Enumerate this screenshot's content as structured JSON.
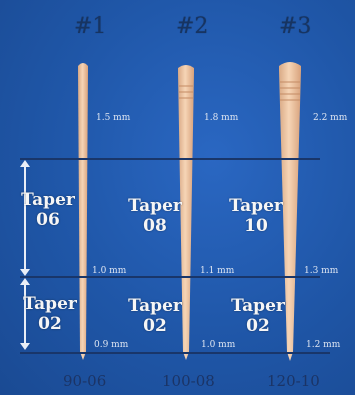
{
  "instruments": [
    {
      "number": "#1",
      "dim_top": "1.5 mm",
      "dim_mid": "1.0 mm",
      "dim_bottom": "0.9 mm",
      "code": "90-06",
      "upper_taper": {
        "word": "Taper",
        "value": "06"
      },
      "lower_taper": {
        "word": "Taper",
        "value": "02"
      }
    },
    {
      "number": "#2",
      "dim_top": "1.8 mm",
      "dim_mid": "1.1 mm",
      "dim_bottom": "1.0 mm",
      "code": "100-08",
      "upper_taper": {
        "word": "Taper",
        "value": "08"
      },
      "lower_taper": {
        "word": "Taper",
        "value": "02"
      }
    },
    {
      "number": "#3",
      "dim_top": "2.2 mm",
      "dim_mid": "1.3 mm",
      "dim_bottom": "1.2 mm",
      "code": "120-10",
      "upper_taper": {
        "word": "Taper",
        "value": "10"
      },
      "lower_taper": {
        "word": "Taper",
        "value": "02"
      }
    }
  ],
  "colors": {
    "background": "#1f56a7",
    "instrument": "#f1c9a6",
    "line": "#19366a",
    "label_dark": "#173461"
  }
}
